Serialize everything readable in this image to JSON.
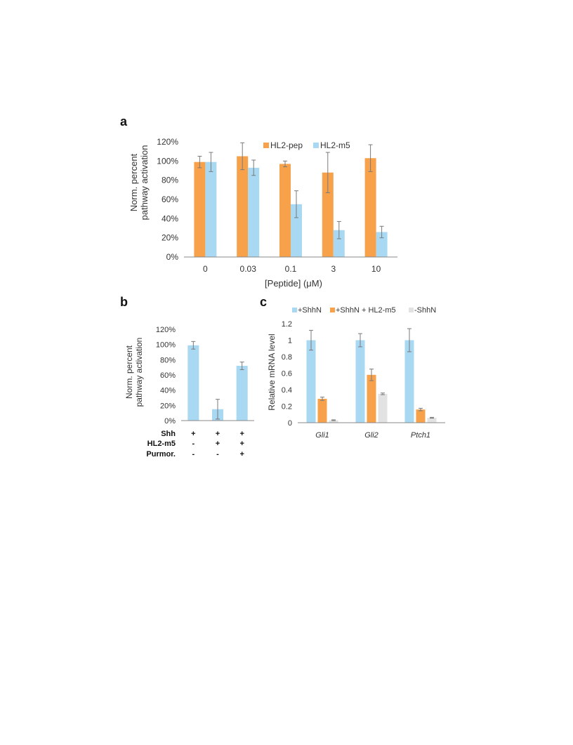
{
  "colors": {
    "orange": "#F7A14B",
    "blue": "#A8D8F2",
    "gray": "#E2E2E2",
    "axis": "#888888",
    "errorbar": "#7a7a7a"
  },
  "panels": {
    "a": "a",
    "b": "b",
    "c": "c"
  },
  "chart_data": [
    {
      "id": "a",
      "type": "bar",
      "xlabel": "[Peptide] (μM)",
      "ylabel_lines": [
        "Norm. percent",
        "pathway activation"
      ],
      "ylim": [
        0,
        120
      ],
      "yticks": [
        "0%",
        "20%",
        "40%",
        "60%",
        "80%",
        "100%",
        "120%"
      ],
      "categories": [
        "0",
        "0.03",
        "0.1",
        "3",
        "10"
      ],
      "legend": "top-right",
      "series": [
        {
          "name": "HL2-pep",
          "color": "orange",
          "values": [
            99,
            105,
            97,
            88,
            103
          ],
          "errors": [
            6,
            14,
            3,
            21,
            14
          ]
        },
        {
          "name": "HL2-m5",
          "color": "blue",
          "values": [
            99,
            93,
            55,
            28,
            26
          ],
          "errors": [
            10,
            8,
            14,
            9,
            6
          ]
        }
      ]
    },
    {
      "id": "b",
      "type": "bar",
      "ylabel_lines": [
        "Norm. percent",
        "pathway activation"
      ],
      "ylim": [
        0,
        120
      ],
      "yticks": [
        "0%",
        "20%",
        "40%",
        "60%",
        "80%",
        "100%",
        "120%"
      ],
      "conditions": {
        "rows": [
          {
            "label": "Shh",
            "values": [
              "+",
              "+",
              "+"
            ]
          },
          {
            "label": "HL2-m5",
            "values": [
              "-",
              "+",
              "+"
            ]
          },
          {
            "label": "Purmor.",
            "values": [
              "-",
              "-",
              "+"
            ]
          }
        ]
      },
      "series": [
        {
          "color": "blue",
          "values": [
            99,
            15,
            72
          ],
          "errors": [
            5,
            13,
            5
          ]
        }
      ]
    },
    {
      "id": "c",
      "type": "bar",
      "ylabel": "Relative mRNA level",
      "ylim": [
        0,
        1.2
      ],
      "yticks": [
        "0",
        "0.2",
        "0.4",
        "0.6",
        "0.8",
        "1",
        "1.2"
      ],
      "categories": [
        "Gli1",
        "Gli2",
        "Ptch1"
      ],
      "legend": "top",
      "series": [
        {
          "name": "+ShhN",
          "color": "blue",
          "values": [
            1.0,
            1.0,
            1.0
          ],
          "errors": [
            0.12,
            0.08,
            0.14
          ]
        },
        {
          "name": "+ShhN + HL2-m5",
          "color": "orange",
          "values": [
            0.29,
            0.58,
            0.16
          ],
          "errors": [
            0.02,
            0.07,
            0.015
          ]
        },
        {
          "name": "-ShhN",
          "color": "gray",
          "values": [
            0.03,
            0.35,
            0.06
          ],
          "errors": [
            0.005,
            0.01,
            0.005
          ]
        }
      ]
    }
  ]
}
